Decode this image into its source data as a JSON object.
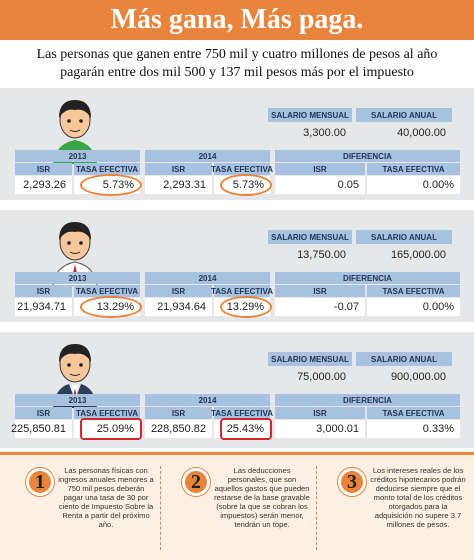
{
  "header": {
    "title": "Más gana, Más paga.",
    "subtitle": [
      "Las personas que ganen entre 750 mil y cuatro millones de pesos al año",
      "pagarán entre dos mil 500 y 137 mil pesos más por el impuesto"
    ]
  },
  "panels": [
    {
      "salary_headers": [
        "SALARIO MENSUAL",
        "SALARIO ANUAL"
      ],
      "salary_values": [
        "3,300.00",
        "40,000.00"
      ],
      "years": [
        "2013",
        "2014",
        "DIFERENCIA"
      ],
      "columns": [
        "ISR",
        "TASA EFECTIVA",
        "ISR",
        "TASA EFECTIVA",
        "ISR",
        "TASA EFECTIVA"
      ],
      "values": [
        "2,293.26",
        "5.73%",
        "2,293.31",
        "5.73%",
        "0.05",
        "0.00%"
      ]
    },
    {
      "salary_headers": [
        "SALARIO MENSUAL",
        "SALARIO ANUAL"
      ],
      "salary_values": [
        "13,750.00",
        "165,000.00"
      ],
      "years": [
        "2013",
        "2014",
        "DIFERENCIA"
      ],
      "columns": [
        "ISR",
        "TASA EFECTIVA",
        "ISR",
        "TASA EFECTIVA",
        "ISR",
        "TASA EFECTIVA"
      ],
      "values": [
        "21,934.71",
        "13.29%",
        "21,934.64",
        "13.29%",
        "-0.07",
        "0.00%"
      ]
    },
    {
      "salary_headers": [
        "SALARIO MENSUAL",
        "SALARIO ANUAL"
      ],
      "salary_values": [
        "75,000.00",
        "900,000.00"
      ],
      "years": [
        "2013",
        "2014",
        "DIFERENCIA"
      ],
      "columns": [
        "ISR",
        "TASA EFECTIVA",
        "ISR",
        "TASA EFECTIVA",
        "ISR",
        "TASA EFECTIVA"
      ],
      "values": [
        "225,850.81",
        "25.09%",
        "228,850.82",
        "25.43%",
        "3,000.01",
        "0.33%"
      ]
    }
  ],
  "notes": [
    {
      "number": "1",
      "text": "Las personas físicas con ingresos anuales menores a 750 mil pesos deberán pagar una tasa de 30 por ciento de Impuesto Sobre la Renta a partir del próximo año."
    },
    {
      "number": "2",
      "text": "Las deducciones personales, que son aquellos gastos que pueden restarse de la base gravable (sobre la que se cobran los impuestos) serán menor, tendrán un tope."
    },
    {
      "number": "3",
      "text": "Los intereses reales de los créditos hipotecarios podrán deducirse siempre que el monto total de los créditos otorgados para la adquisición no supere 3.7 millones de pesos."
    }
  ]
}
